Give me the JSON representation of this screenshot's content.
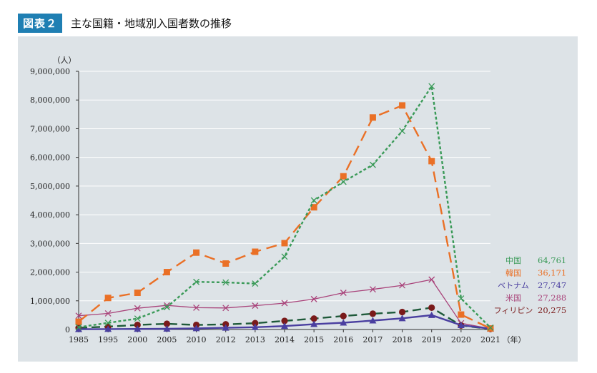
{
  "header": {
    "badge": "図表２",
    "title": "主な国籍・地域別入国者数の推移"
  },
  "chart_data": {
    "type": "line",
    "title": "主な国籍・地域別入国者数の推移",
    "ylabel": "（人）",
    "xlabel": "（年）",
    "ylim": [
      0,
      9000000
    ],
    "yticks": [
      "0",
      "1,000,000",
      "2,000,000",
      "3,000,000",
      "4,000,000",
      "5,000,000",
      "6,000,000",
      "7,000,000",
      "8,000,000",
      "9,000,000"
    ],
    "categories": [
      "1985",
      "1995",
      "2000",
      "2005",
      "2010",
      "2012",
      "2013",
      "2014",
      "2015",
      "2016",
      "2017",
      "2018",
      "2019",
      "2020",
      "2021"
    ],
    "grid": true,
    "legend_position": "right",
    "series": [
      {
        "name": "中国",
        "legend_value": "64,761",
        "color": "#3a9a58",
        "marker": "x",
        "dash": "4,3",
        "values": [
          80000,
          230000,
          380000,
          780000,
          1660000,
          1640000,
          1600000,
          2540000,
          4500000,
          5150000,
          5740000,
          6920000,
          8480000,
          1080000,
          64761
        ]
      },
      {
        "name": "韓国",
        "legend_value": "36,171",
        "color": "#ea7026",
        "marker": "square",
        "dash": "15,8",
        "values": [
          270000,
          1100000,
          1280000,
          2000000,
          2680000,
          2300000,
          2710000,
          3010000,
          4260000,
          5340000,
          7390000,
          7810000,
          5870000,
          520000,
          36171
        ]
      },
      {
        "name": "ベトナム",
        "legend_value": "27,747",
        "color": "#4a3fa0",
        "marker": "triangle",
        "dash": "",
        "values": [
          10000,
          15000,
          20000,
          25000,
          40000,
          60000,
          80000,
          120000,
          185000,
          235000,
          310000,
          390000,
          500000,
          150000,
          27747
        ]
      },
      {
        "name": "米国",
        "legend_value": "27,288",
        "color": "#a9437a",
        "marker": "x",
        "dash": "",
        "values": [
          480000,
          560000,
          740000,
          840000,
          760000,
          750000,
          830000,
          920000,
          1060000,
          1280000,
          1400000,
          1540000,
          1740000,
          220000,
          27288
        ]
      },
      {
        "name": "フィリピン",
        "legend_value": "20,275",
        "color": "#7a1a1a",
        "marker": "circle",
        "dash": "12,6",
        "line_color": "#1f5a3a",
        "values": [
          60000,
          100000,
          160000,
          200000,
          160000,
          180000,
          220000,
          300000,
          380000,
          470000,
          550000,
          610000,
          760000,
          140000,
          20275
        ]
      }
    ]
  }
}
